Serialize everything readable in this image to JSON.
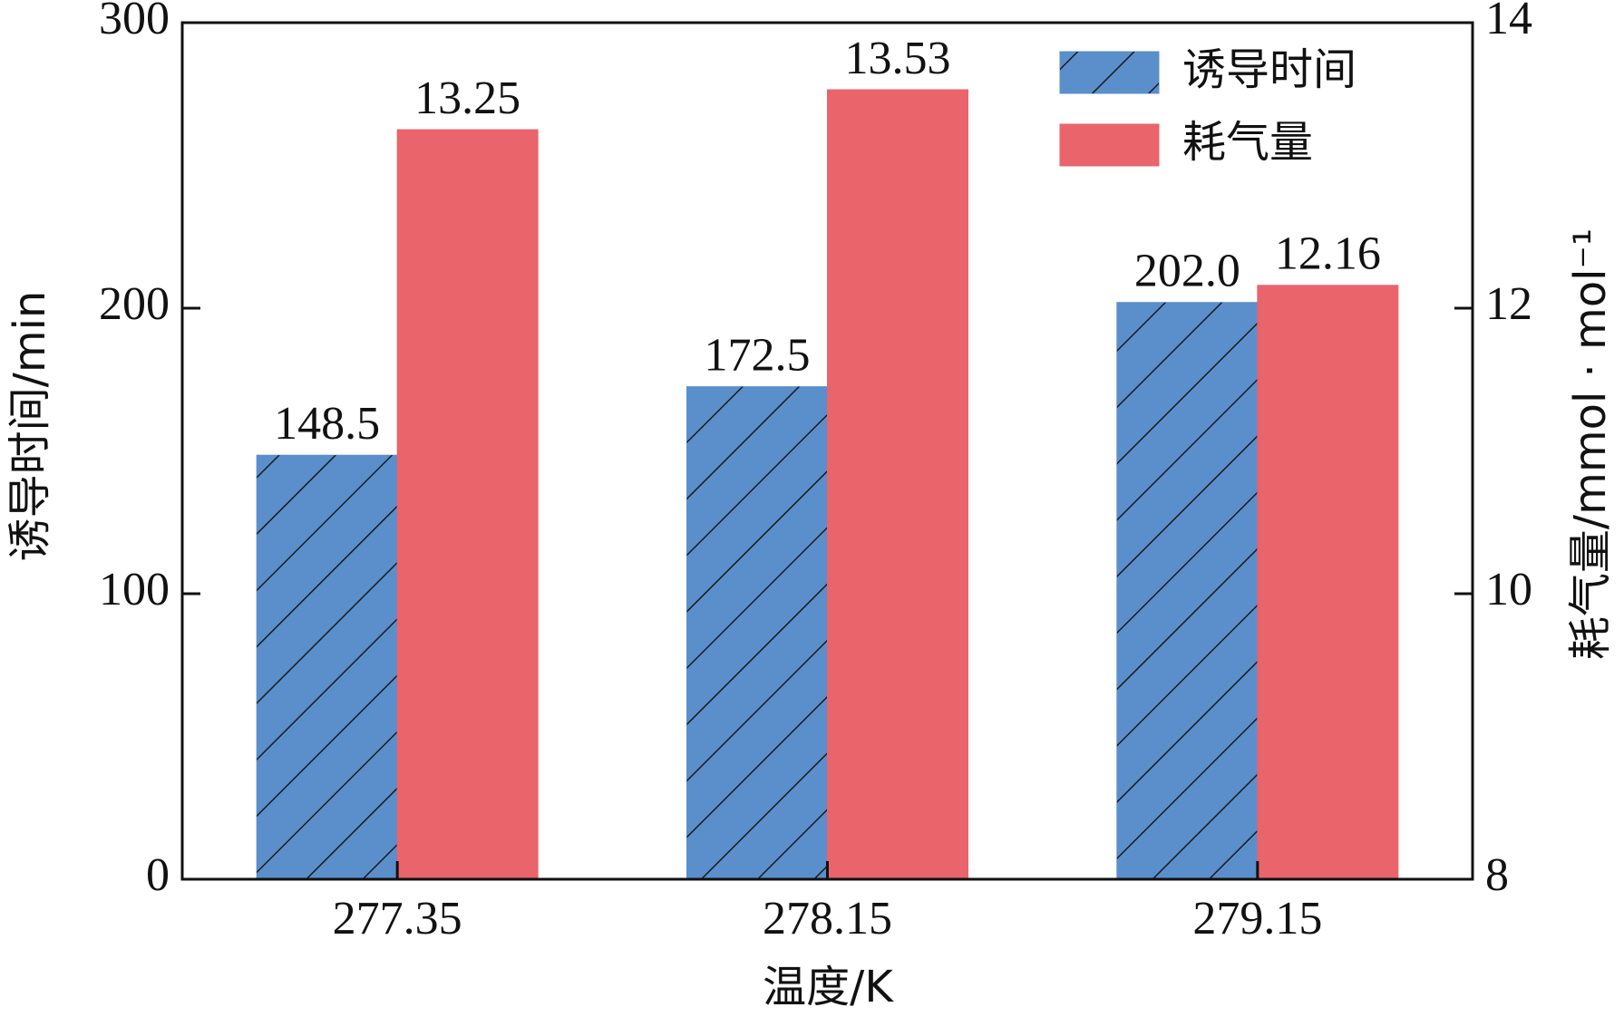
{
  "chart_data": {
    "type": "bar",
    "x_label": "温度/K",
    "y_label": "诱导时间/min",
    "y2_label": "耗气量/mmol · mol⁻¹",
    "categories": [
      "277.35",
      "278.15",
      "279.15"
    ],
    "series": [
      {
        "name": "诱导时间",
        "color": "#5b8fcb",
        "hatch": true,
        "values": [
          148.5,
          172.5,
          202.0
        ],
        "value_labels": [
          "148.5",
          "172.5",
          "202.0"
        ]
      },
      {
        "name": "耗气量",
        "color": "#e9646b",
        "axis": "y2",
        "values": [
          13.25,
          13.53,
          12.16
        ]
      }
    ],
    "ylim": [
      0,
      300
    ],
    "yticks": [
      0,
      100,
      200,
      300
    ],
    "y2lim": [
      8,
      14
    ],
    "y2ticks": [
      8,
      10,
      12,
      14
    ],
    "legend": "upper right"
  }
}
